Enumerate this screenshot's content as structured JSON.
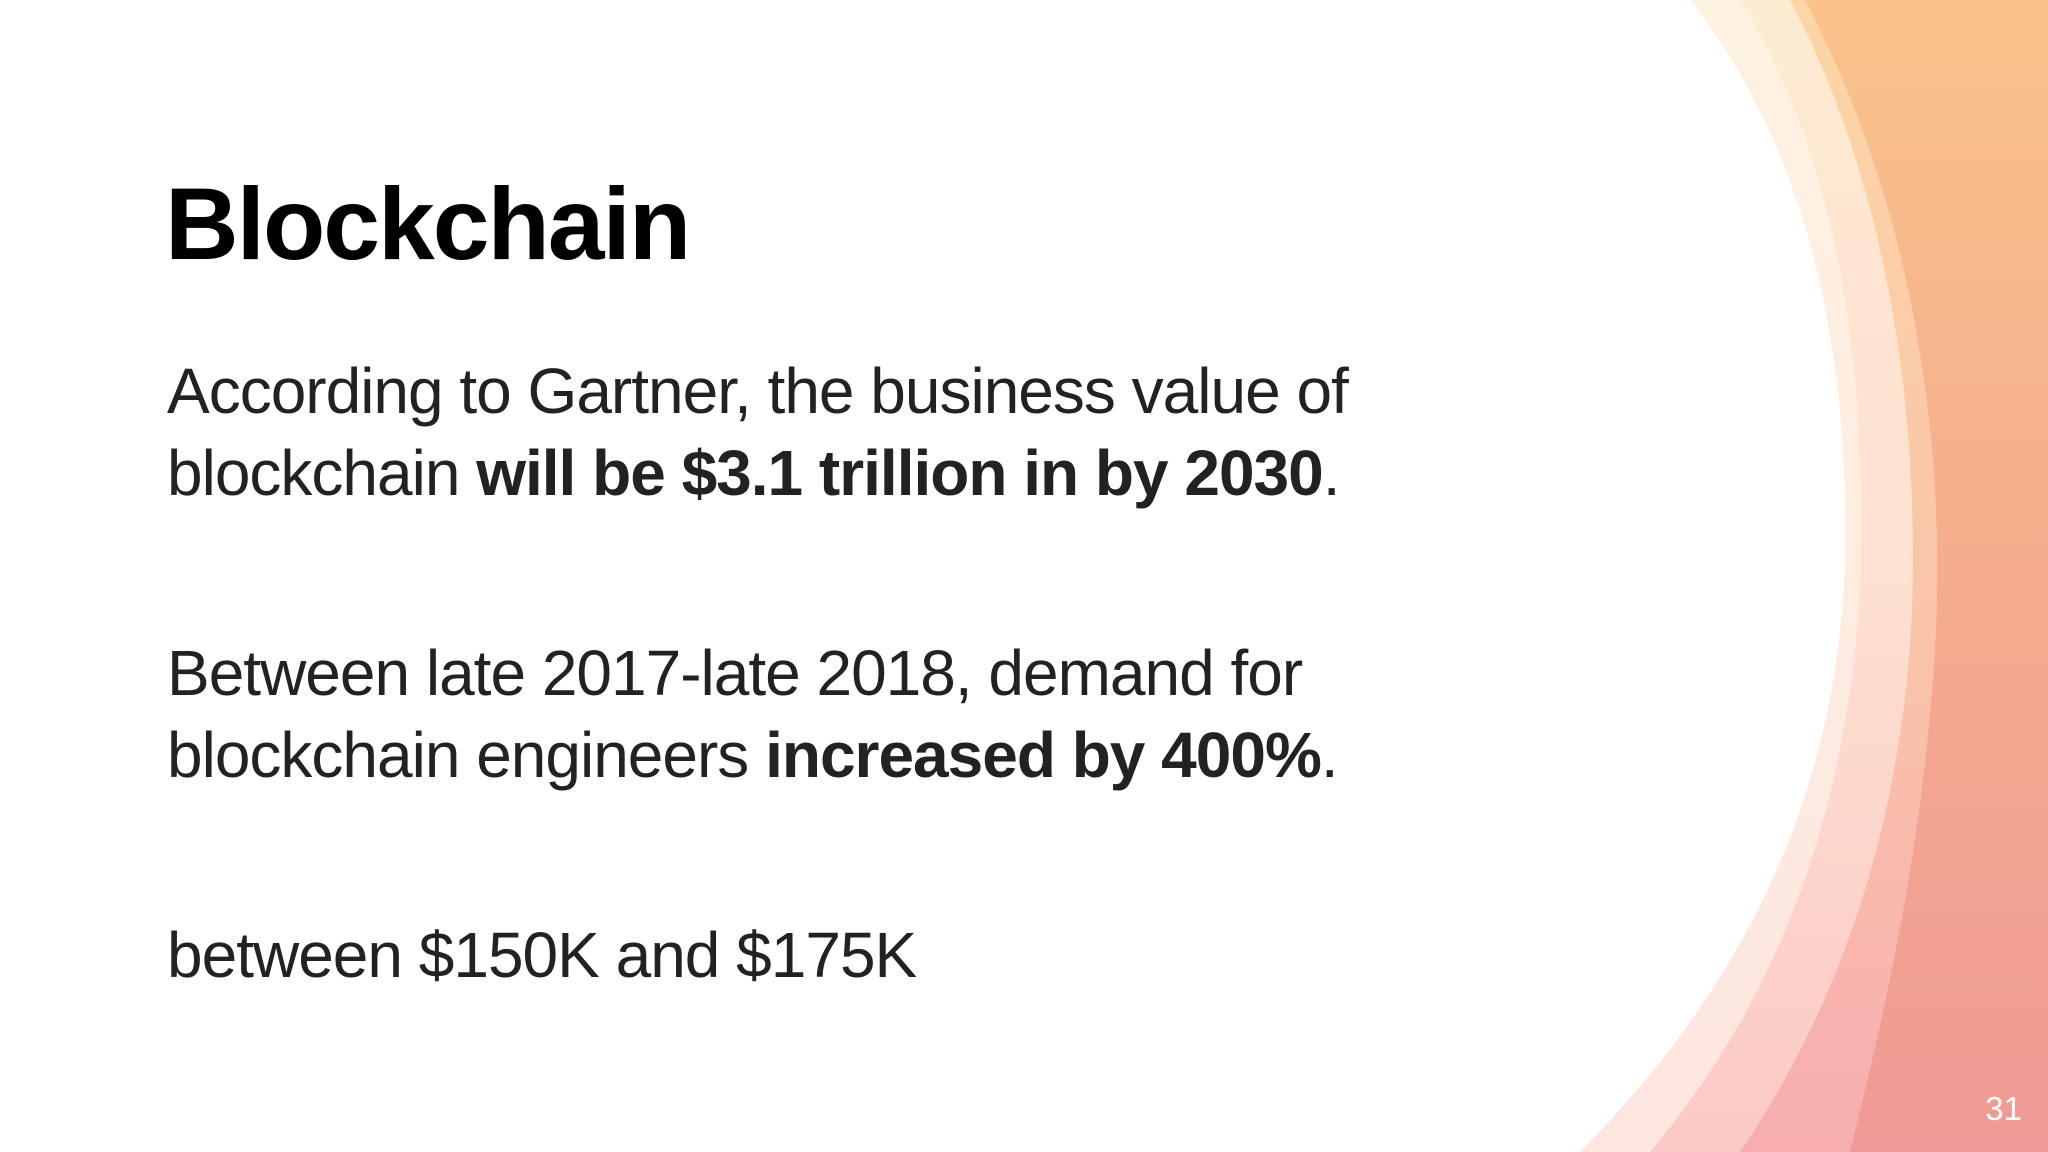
{
  "slide": {
    "title": "Blockchain",
    "paragraphs": [
      {
        "prefix": "According to Gartner, the business value of blockchain ",
        "bold": "will be $3.1 trillion in by 2030",
        "suffix": "."
      },
      {
        "prefix": "Between late 2017-late 2018, demand for blockchain engineers ",
        "bold": "increased by 400%",
        "suffix": "."
      },
      {
        "prefix": "between $150K and $175K",
        "bold": "",
        "suffix": ""
      }
    ],
    "page_number": "31"
  },
  "colors": {
    "background": "#ffffff",
    "text": "#222222",
    "title": "#000000",
    "accent_orange": "#f7b876",
    "accent_pink": "#f4a0a0",
    "accent_peach": "#fde3c4"
  }
}
